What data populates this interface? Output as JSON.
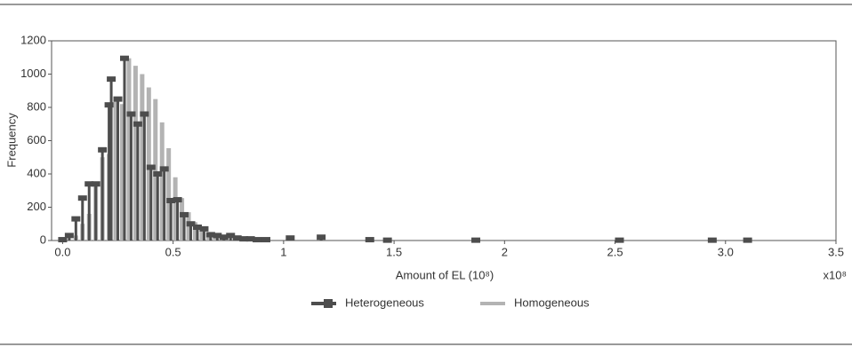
{
  "chart_data": {
    "type": "bar",
    "xlabel": "Amount of EL (10⁸)",
    "ylabel": "Frequency",
    "annotation": "x10⁸",
    "xlim": [
      -0.05,
      3.5
    ],
    "xticks": [
      {
        "value": 0,
        "label": "0.0"
      },
      0.5,
      1,
      1.5,
      2,
      2.5,
      {
        "value": 3,
        "label": "3.0"
      },
      3.5
    ],
    "ylim": [
      0,
      1200
    ],
    "yticks": [
      0,
      200,
      400,
      600,
      800,
      1000,
      1200
    ],
    "grid": false,
    "legend": "bottom",
    "series": [
      {
        "name": "Heterogeneous",
        "color": "#4d4d4d",
        "x": [
          0.0,
          0.03,
          0.06,
          0.09,
          0.12,
          0.15,
          0.18,
          0.21,
          0.22,
          0.25,
          0.28,
          0.31,
          0.34,
          0.37,
          0.4,
          0.43,
          0.46,
          0.49,
          0.52,
          0.55,
          0.58,
          0.61,
          0.64,
          0.67,
          0.7,
          0.73,
          0.76,
          0.79,
          0.82,
          0.85,
          0.88,
          0.92,
          1.03,
          1.17,
          1.39,
          1.47,
          1.87,
          2.52,
          2.94,
          3.1
        ],
        "values": [
          5,
          30,
          130,
          255,
          340,
          340,
          545,
          815,
          970,
          850,
          1095,
          760,
          700,
          760,
          440,
          400,
          430,
          240,
          245,
          155,
          100,
          80,
          70,
          35,
          30,
          20,
          30,
          15,
          10,
          10,
          5,
          5,
          15,
          20,
          5,
          2,
          2,
          2,
          2,
          2
        ]
      },
      {
        "name": "Homogeneous",
        "color": "#b3b3b3",
        "x": [
          0.06,
          0.09,
          0.12,
          0.15,
          0.18,
          0.21,
          0.24,
          0.27,
          0.3,
          0.33,
          0.36,
          0.39,
          0.42,
          0.45,
          0.48,
          0.51,
          0.54,
          0.57,
          0.6,
          0.63,
          0.66,
          0.69
        ],
        "values": [
          30,
          100,
          160,
          330,
          500,
          520,
          840,
          820,
          1095,
          1050,
          1000,
          920,
          850,
          710,
          555,
          380,
          255,
          170,
          110,
          75,
          45,
          25
        ]
      }
    ]
  }
}
